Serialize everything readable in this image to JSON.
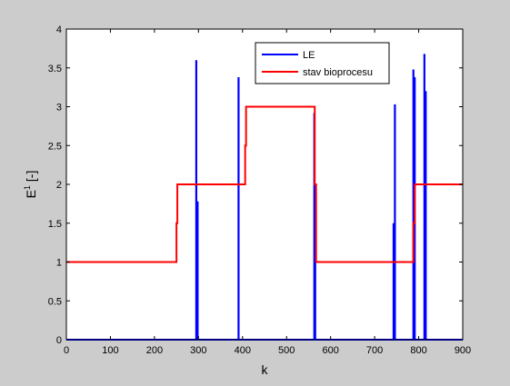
{
  "chart_data": {
    "type": "line",
    "title": "",
    "xlabel": "k",
    "ylabel_main": "E",
    "ylabel_sup": "1",
    "ylabel_rest": " [-]",
    "xlim": [
      0,
      900
    ],
    "ylim": [
      0,
      4
    ],
    "grid": false,
    "legend_position": "top-center",
    "x_ticks": [
      0,
      100,
      200,
      300,
      400,
      500,
      600,
      700,
      800,
      900
    ],
    "y_ticks": [
      0,
      0.5,
      1,
      1.5,
      2,
      2.5,
      3,
      3.5,
      4
    ],
    "x_tick_labels": [
      "0",
      "100",
      "200",
      "300",
      "400",
      "500",
      "600",
      "700",
      "800",
      "900"
    ],
    "y_tick_labels": [
      "0",
      "0.5",
      "1",
      "1.5",
      "2",
      "2.5",
      "3",
      "3.5",
      "4"
    ],
    "series": [
      {
        "name": "LE",
        "color": "#0000ff",
        "style": "spikes",
        "x": [
          295,
          298,
          391,
          563,
          565,
          743,
          746,
          788,
          791,
          813,
          816
        ],
        "values": [
          3.6,
          1.78,
          3.38,
          2.92,
          1.98,
          1.5,
          3.03,
          3.48,
          3.38,
          3.68,
          3.2
        ]
      },
      {
        "name": "stav bioprocesu",
        "color": "#ff0000",
        "style": "step",
        "x": [
          0,
          250,
          250,
          252,
          252,
          406,
          406,
          408,
          408,
          564,
          564,
          567,
          567,
          788,
          788,
          791,
          791,
          900
        ],
        "values": [
          1,
          1,
          1.5,
          1.5,
          2,
          2,
          2.5,
          2.5,
          3,
          3,
          2,
          2,
          1,
          1,
          1.5,
          1.5,
          2,
          2
        ]
      }
    ]
  }
}
